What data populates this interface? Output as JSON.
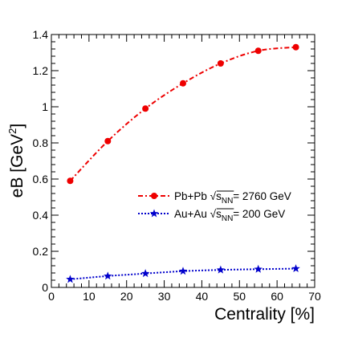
{
  "chart_data": {
    "type": "line",
    "title": "",
    "xlabel": "Centrality [%]",
    "ylabel": "eB [GeV²]",
    "ylabel_parts": {
      "main": "eB [GeV",
      "sup": "2",
      "close": "]"
    },
    "xlim": [
      0,
      70
    ],
    "ylim": [
      0,
      1.4
    ],
    "x_ticks": [
      0,
      10,
      20,
      30,
      40,
      50,
      60,
      70
    ],
    "y_ticks": [
      0,
      0.2,
      0.4,
      0.6,
      0.8,
      1,
      1.2,
      1.4
    ],
    "x_tick_labels": [
      "0",
      "10",
      "20",
      "30",
      "40",
      "50",
      "60",
      "70"
    ],
    "y_tick_labels": [
      "0",
      "0.2",
      "0.4",
      "0.6",
      "0.8",
      "1",
      "1.2",
      "1.4"
    ],
    "grid": false,
    "legend_position": "center-right",
    "series": [
      {
        "name": "Pb+Pb √sNN= 2760 GeV",
        "label_parts": {
          "system": "Pb+Pb",
          "sub": "NN",
          "energy": "= 2760 GeV"
        },
        "color": "#ee0000",
        "marker": "circle",
        "line_style": "dash-dot",
        "x": [
          5,
          15,
          25,
          35,
          45,
          55,
          65
        ],
        "y": [
          0.59,
          0.81,
          0.99,
          1.13,
          1.24,
          1.31,
          1.33
        ]
      },
      {
        "name": "Au+Au √sNN= 200 GeV",
        "label_parts": {
          "system": "Au+Au",
          "sub": "NN",
          "energy": "= 200 GeV"
        },
        "color": "#0000cc",
        "marker": "star",
        "line_style": "dotted",
        "x": [
          5,
          15,
          25,
          35,
          45,
          55,
          65
        ],
        "y": [
          0.045,
          0.063,
          0.077,
          0.09,
          0.097,
          0.101,
          0.104
        ]
      }
    ]
  }
}
